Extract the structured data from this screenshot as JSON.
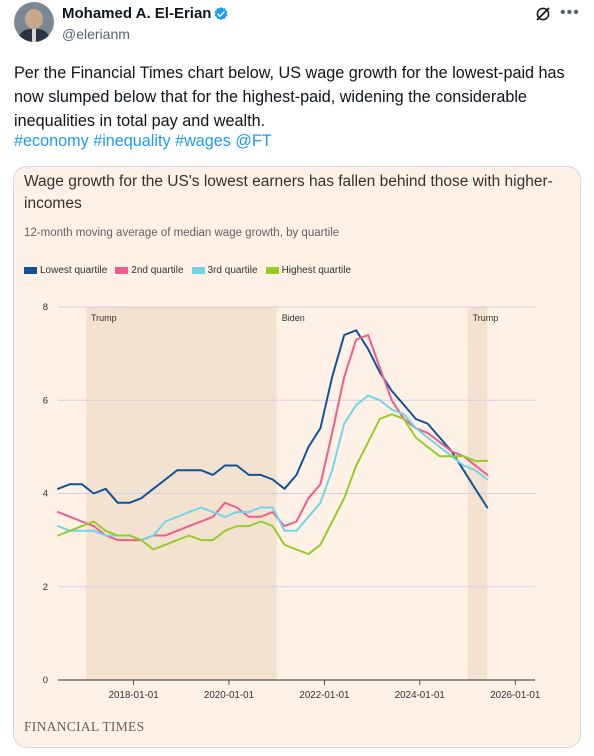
{
  "tweet": {
    "author_name": "Mohamed A. El-Erian",
    "handle": "@elerianm",
    "text": "Per the Financial Times chart below, US wage growth for the lowest-paid has now slumped below that for the highest-paid, widening the considerable inequalities in total pay and wealth.",
    "hashtags": [
      "#economy",
      "#inequality",
      "#wages",
      "@FT"
    ],
    "verified_color": "#1d9bf0",
    "link_color": "#1d9bf0"
  },
  "card": {
    "source_logo": "FINANCIAL TIMES"
  },
  "chart_data": {
    "type": "line",
    "title": "Wage growth for the US's lowest earners has fallen behind those with higher-incomes",
    "subtitle": "12-month moving average of median wage growth, by quartile",
    "x_ticks": [
      "2018-01-01",
      "2020-01-01",
      "2022-01-01",
      "2024-01-01",
      "2026-01-01"
    ],
    "y_ticks": [
      0,
      2,
      4,
      6,
      8
    ],
    "xlim": [
      "2016-06-01",
      "2026-06-01"
    ],
    "ylim": [
      0,
      8
    ],
    "grid": "horizontal",
    "legend_position": "top-left",
    "shaded_periods": [
      {
        "label": "Trump",
        "start": "2017-01-01",
        "end": "2021-01-01"
      },
      {
        "label": "Biden",
        "start": "2021-01-01",
        "end": "2025-01-01"
      },
      {
        "label": "Trump",
        "start": "2025-01-01",
        "end": "2025-06-01"
      }
    ],
    "series": [
      {
        "name": "Lowest quartile",
        "color": "#0f5499",
        "x": [
          "2016-06-01",
          "2016-09-01",
          "2016-12-01",
          "2017-03-01",
          "2017-06-01",
          "2017-09-01",
          "2017-12-01",
          "2018-03-01",
          "2018-06-01",
          "2018-09-01",
          "2018-12-01",
          "2019-03-01",
          "2019-06-01",
          "2019-09-01",
          "2019-12-01",
          "2020-03-01",
          "2020-06-01",
          "2020-09-01",
          "2020-12-01",
          "2021-03-01",
          "2021-06-01",
          "2021-09-01",
          "2021-12-01",
          "2022-03-01",
          "2022-06-01",
          "2022-09-01",
          "2022-12-01",
          "2023-03-01",
          "2023-06-01",
          "2023-09-01",
          "2023-12-01",
          "2024-03-01",
          "2024-06-01",
          "2024-09-01",
          "2024-12-01",
          "2025-03-01",
          "2025-06-01"
        ],
        "values": [
          4.1,
          4.2,
          4.2,
          4.0,
          4.1,
          3.8,
          3.8,
          3.9,
          4.1,
          4.3,
          4.5,
          4.5,
          4.5,
          4.4,
          4.6,
          4.6,
          4.4,
          4.4,
          4.3,
          4.1,
          4.4,
          5.0,
          5.4,
          6.5,
          7.4,
          7.5,
          7.1,
          6.6,
          6.2,
          5.9,
          5.6,
          5.5,
          5.2,
          4.9,
          4.5,
          4.1,
          3.7
        ]
      },
      {
        "name": "2nd quartile",
        "color": "#eb5e8d",
        "x": [
          "2016-06-01",
          "2016-09-01",
          "2016-12-01",
          "2017-03-01",
          "2017-06-01",
          "2017-09-01",
          "2017-12-01",
          "2018-03-01",
          "2018-06-01",
          "2018-09-01",
          "2018-12-01",
          "2019-03-01",
          "2019-06-01",
          "2019-09-01",
          "2019-12-01",
          "2020-03-01",
          "2020-06-01",
          "2020-09-01",
          "2020-12-01",
          "2021-03-01",
          "2021-06-01",
          "2021-09-01",
          "2021-12-01",
          "2022-03-01",
          "2022-06-01",
          "2022-09-01",
          "2022-12-01",
          "2023-03-01",
          "2023-06-01",
          "2023-09-01",
          "2023-12-01",
          "2024-03-01",
          "2024-06-01",
          "2024-09-01",
          "2024-12-01",
          "2025-03-01",
          "2025-06-01"
        ],
        "values": [
          3.6,
          3.5,
          3.4,
          3.3,
          3.1,
          3.0,
          3.0,
          3.0,
          3.1,
          3.1,
          3.2,
          3.3,
          3.4,
          3.5,
          3.8,
          3.7,
          3.5,
          3.5,
          3.6,
          3.3,
          3.4,
          3.9,
          4.2,
          5.3,
          6.5,
          7.3,
          7.4,
          6.7,
          6.0,
          5.6,
          5.4,
          5.3,
          5.1,
          4.9,
          4.8,
          4.6,
          4.4
        ]
      },
      {
        "name": "3rd quartile",
        "color": "#6fd6e8",
        "x": [
          "2016-06-01",
          "2016-09-01",
          "2016-12-01",
          "2017-03-01",
          "2017-06-01",
          "2017-09-01",
          "2017-12-01",
          "2018-03-01",
          "2018-06-01",
          "2018-09-01",
          "2018-12-01",
          "2019-03-01",
          "2019-06-01",
          "2019-09-01",
          "2019-12-01",
          "2020-03-01",
          "2020-06-01",
          "2020-09-01",
          "2020-12-01",
          "2021-03-01",
          "2021-06-01",
          "2021-09-01",
          "2021-12-01",
          "2022-03-01",
          "2022-06-01",
          "2022-09-01",
          "2022-12-01",
          "2023-03-01",
          "2023-06-01",
          "2023-09-01",
          "2023-12-01",
          "2024-03-01",
          "2024-06-01",
          "2024-09-01",
          "2024-12-01",
          "2025-03-01",
          "2025-06-01"
        ],
        "values": [
          3.3,
          3.2,
          3.2,
          3.2,
          3.1,
          3.1,
          3.1,
          3.0,
          3.1,
          3.4,
          3.5,
          3.6,
          3.7,
          3.6,
          3.5,
          3.6,
          3.6,
          3.7,
          3.7,
          3.2,
          3.2,
          3.5,
          3.8,
          4.5,
          5.5,
          5.9,
          6.1,
          6.0,
          5.8,
          5.7,
          5.4,
          5.2,
          5.0,
          4.8,
          4.6,
          4.5,
          4.3
        ]
      },
      {
        "name": "Highest quartile",
        "color": "#96cc28",
        "x": [
          "2016-06-01",
          "2016-09-01",
          "2016-12-01",
          "2017-03-01",
          "2017-06-01",
          "2017-09-01",
          "2017-12-01",
          "2018-03-01",
          "2018-06-01",
          "2018-09-01",
          "2018-12-01",
          "2019-03-01",
          "2019-06-01",
          "2019-09-01",
          "2019-12-01",
          "2020-03-01",
          "2020-06-01",
          "2020-09-01",
          "2020-12-01",
          "2021-03-01",
          "2021-06-01",
          "2021-09-01",
          "2021-12-01",
          "2022-03-01",
          "2022-06-01",
          "2022-09-01",
          "2022-12-01",
          "2023-03-01",
          "2023-06-01",
          "2023-09-01",
          "2023-12-01",
          "2024-03-01",
          "2024-06-01",
          "2024-09-01",
          "2024-12-01",
          "2025-03-01",
          "2025-06-01"
        ],
        "values": [
          3.1,
          3.2,
          3.3,
          3.4,
          3.2,
          3.1,
          3.1,
          3.0,
          2.8,
          2.9,
          3.0,
          3.1,
          3.0,
          3.0,
          3.2,
          3.3,
          3.3,
          3.4,
          3.3,
          2.9,
          2.8,
          2.7,
          2.9,
          3.4,
          3.9,
          4.6,
          5.1,
          5.6,
          5.7,
          5.6,
          5.2,
          5.0,
          4.8,
          4.8,
          4.8,
          4.7,
          4.7
        ]
      }
    ]
  }
}
